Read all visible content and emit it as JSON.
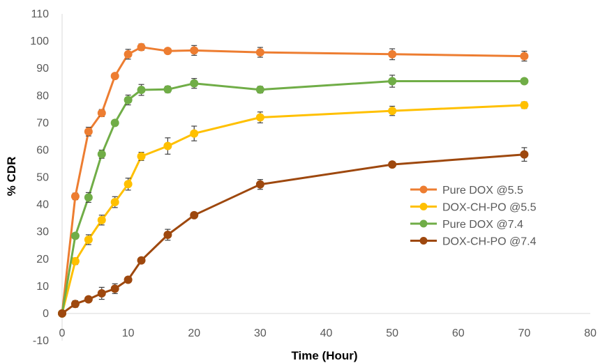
{
  "chart_data": {
    "type": "line",
    "title": "",
    "xlabel": "Time (Hour)",
    "ylabel": "% CDR",
    "xlim": [
      0,
      80
    ],
    "ylim": [
      -10,
      110
    ],
    "xticks": [
      0,
      10,
      20,
      30,
      40,
      50,
      60,
      70,
      80
    ],
    "yticks": [
      -10,
      0,
      10,
      20,
      30,
      40,
      50,
      60,
      70,
      80,
      90,
      100,
      110
    ],
    "grid": false,
    "legend_position": "right",
    "series": [
      {
        "name": "Pure DOX @5.5",
        "color": "#ED7D31",
        "x": [
          0,
          2,
          4,
          6,
          8,
          10,
          12,
          16,
          20,
          30,
          50,
          70
        ],
        "y": [
          0,
          43,
          66.8,
          73.6,
          87.2,
          95.2,
          97.8,
          96.4,
          96.6,
          95.9,
          95.2,
          94.5
        ],
        "err": [
          0,
          1.2,
          1.6,
          1.3,
          1.0,
          1.8,
          1.2,
          1.0,
          1.8,
          1.8,
          2.0,
          1.8
        ]
      },
      {
        "name": "DOX-CH-PO @5.5",
        "color": "#FFC000",
        "x": [
          0,
          2,
          4,
          6,
          8,
          10,
          12,
          16,
          20,
          30,
          50,
          70
        ],
        "y": [
          0,
          19.2,
          27.1,
          34.3,
          40.9,
          47.5,
          57.7,
          61.5,
          66.1,
          72,
          74.4,
          76.5
        ],
        "err": [
          0,
          1.2,
          1.8,
          1.8,
          2.0,
          2.2,
          1.5,
          3.0,
          2.7,
          2.0,
          1.7,
          1.2
        ]
      },
      {
        "name": "Pure DOX @7.4",
        "color": "#70AD47",
        "x": [
          0,
          2,
          4,
          6,
          8,
          10,
          12,
          16,
          20,
          30,
          50,
          70
        ],
        "y": [
          0,
          28.5,
          42.6,
          58.5,
          70,
          78.4,
          82.1,
          82.3,
          84.5,
          82.2,
          85.3,
          85.3
        ],
        "err": [
          0,
          1.0,
          1.8,
          1.5,
          1.0,
          1.8,
          2.0,
          1.2,
          1.8,
          1.2,
          2.2,
          1.0
        ]
      },
      {
        "name": "DOX-CH-PO @7.4",
        "color": "#9E480E",
        "x": [
          0,
          2,
          4,
          6,
          8,
          10,
          12,
          16,
          20,
          30,
          50,
          70
        ],
        "y": [
          0,
          3.5,
          5.2,
          7.4,
          9.1,
          12.4,
          19.5,
          28.9,
          36.1,
          47.4,
          54.7,
          58.4
        ],
        "err": [
          0,
          1.2,
          1.0,
          2.2,
          1.8,
          1.0,
          1.0,
          2.0,
          1.0,
          1.8,
          1.0,
          2.5
        ]
      }
    ]
  }
}
